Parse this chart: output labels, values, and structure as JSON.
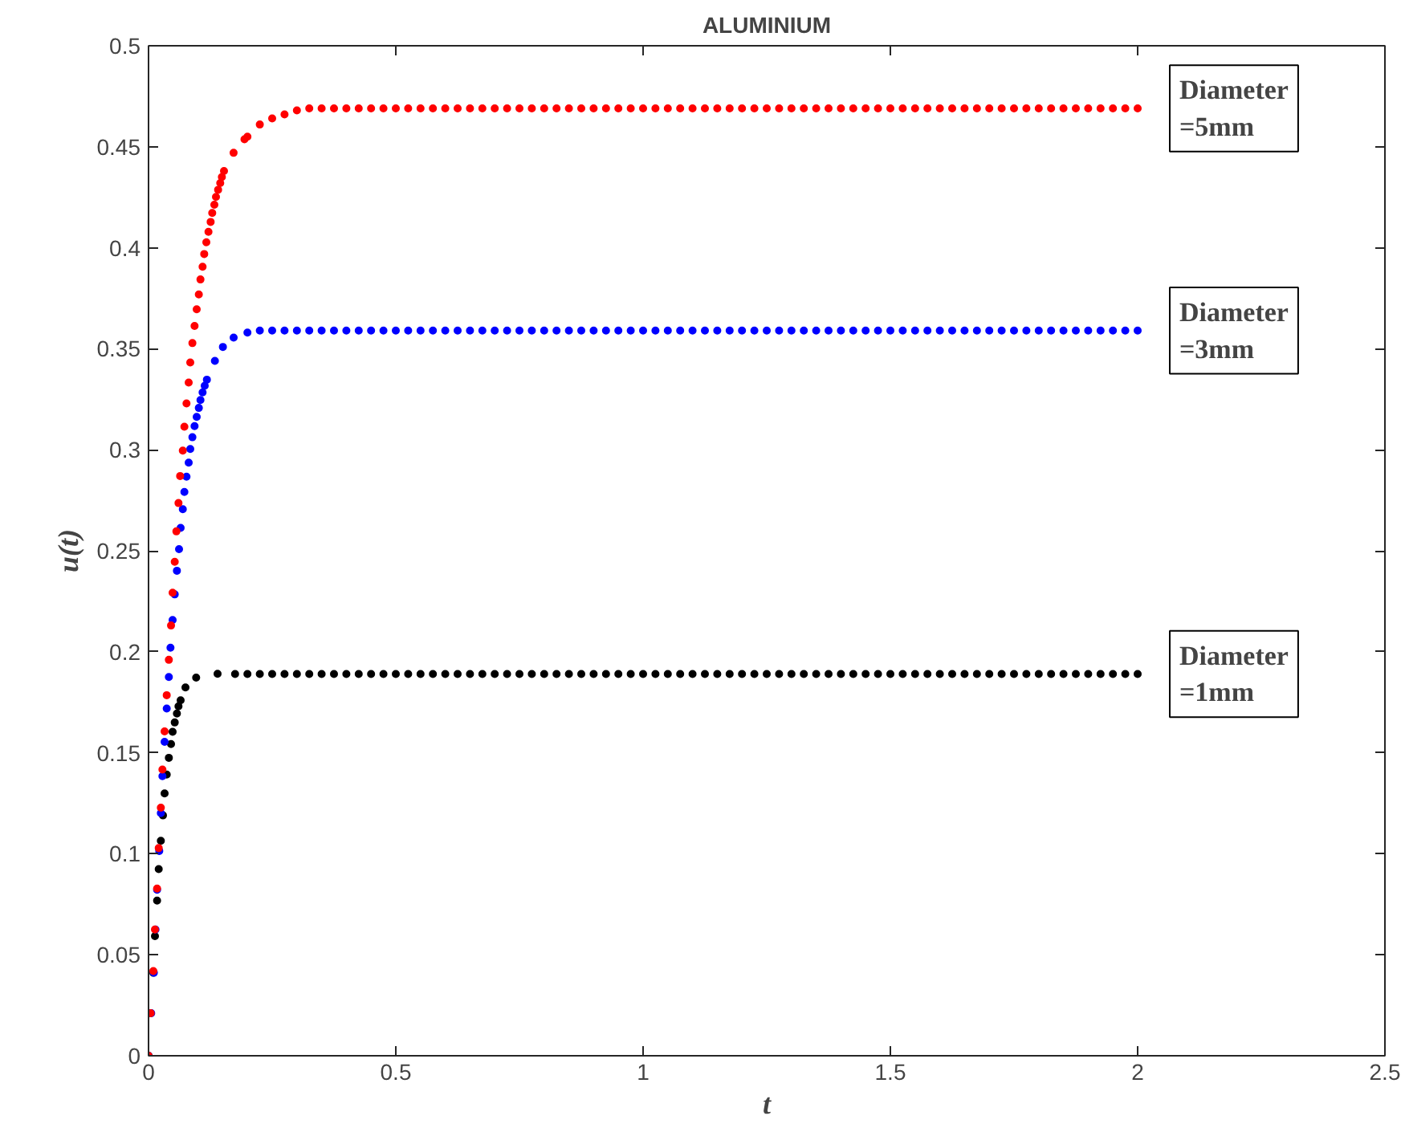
{
  "chart_data": {
    "type": "scatter",
    "title": "ALUMINIUM",
    "xlabel": "t",
    "ylabel": "u(t)",
    "xlim": [
      0,
      2.5
    ],
    "ylim": [
      0,
      0.5
    ],
    "xticks": [
      0,
      0.5,
      1,
      1.5,
      2,
      2.5
    ],
    "yticks": [
      0,
      0.05,
      0.1,
      0.15,
      0.2,
      0.25,
      0.3,
      0.35,
      0.4,
      0.45,
      0.5
    ],
    "grid": false,
    "legend": false,
    "marker": "circle",
    "series": [
      {
        "name": "Diameter\n=5mm",
        "color": "#ff0000",
        "x": [
          0,
          0.0043,
          0.0097,
          0.013,
          0.0173,
          0.0206,
          0.0249,
          0.0281,
          0.0325,
          0.0368,
          0.0411,
          0.0455,
          0.0487,
          0.053,
          0.0563,
          0.0606,
          0.0639,
          0.0693,
          0.0725,
          0.0768,
          0.0812,
          0.0844,
          0.0887,
          0.0931,
          0.0974,
          0.1017,
          0.105,
          0.1093,
          0.1126,
          0.1169,
          0.1212,
          0.1256,
          0.1288,
          0.1331,
          0.1364,
          0.1407,
          0.145,
          0.1483,
          0.1526,
          0.172,
          0.194,
          0.2,
          0.225,
          0.25,
          0.275,
          0.3,
          0.325,
          0.35,
          0.375,
          0.4,
          0.425,
          0.45,
          0.475,
          0.5,
          0.525,
          0.55,
          0.575,
          0.6,
          0.625,
          0.65,
          0.675,
          0.7,
          0.725,
          0.75,
          0.775,
          0.8,
          0.825,
          0.85,
          0.875,
          0.9,
          0.925,
          0.95,
          0.975,
          1,
          1.025,
          1.05,
          1.075,
          1.1,
          1.125,
          1.15,
          1.175,
          1.2,
          1.225,
          1.25,
          1.275,
          1.3,
          1.325,
          1.35,
          1.375,
          1.4,
          1.425,
          1.45,
          1.475,
          1.5,
          1.525,
          1.55,
          1.575,
          1.6,
          1.625,
          1.65,
          1.675,
          1.7,
          1.725,
          1.75,
          1.775,
          1.8,
          1.825,
          1.85,
          1.875,
          1.9,
          1.925,
          1.95,
          1.975,
          2
        ],
        "values": [
          0,
          0.0211,
          0.0419,
          0.0625,
          0.0828,
          0.1028,
          0.1228,
          0.1417,
          0.1606,
          0.1785,
          0.196,
          0.213,
          0.2292,
          0.2445,
          0.2596,
          0.2736,
          0.287,
          0.2996,
          0.3114,
          0.3229,
          0.3333,
          0.3432,
          0.3528,
          0.3613,
          0.3695,
          0.3769,
          0.3843,
          0.3906,
          0.3969,
          0.4027,
          0.4079,
          0.4128,
          0.4172,
          0.4213,
          0.4252,
          0.4287,
          0.432,
          0.435,
          0.438,
          0.447,
          0.4537,
          0.455,
          0.461,
          0.464,
          0.466,
          0.468,
          0.469,
          0.469,
          0.469,
          0.469,
          0.469,
          0.469,
          0.469,
          0.469,
          0.469,
          0.469,
          0.469,
          0.469,
          0.469,
          0.469,
          0.469,
          0.469,
          0.469,
          0.469,
          0.469,
          0.469,
          0.469,
          0.469,
          0.469,
          0.469,
          0.469,
          0.469,
          0.469,
          0.469,
          0.469,
          0.469,
          0.469,
          0.469,
          0.469,
          0.469,
          0.469,
          0.469,
          0.469,
          0.469,
          0.469,
          0.469,
          0.469,
          0.469,
          0.469,
          0.469,
          0.469,
          0.469,
          0.469,
          0.469,
          0.469,
          0.469,
          0.469,
          0.469,
          0.469,
          0.469,
          0.469,
          0.469,
          0.469,
          0.469,
          0.469,
          0.469,
          0.469,
          0.469,
          0.469,
          0.469,
          0.469,
          0.469,
          0.469,
          0.469
        ]
      },
      {
        "name": "Diameter\n=3mm",
        "color": "#0000ff",
        "x": [
          0,
          0.0054,
          0.0108,
          0.0141,
          0.0173,
          0.0217,
          0.0249,
          0.0281,
          0.0325,
          0.0368,
          0.0411,
          0.0444,
          0.0487,
          0.053,
          0.0574,
          0.0617,
          0.0649,
          0.0693,
          0.0725,
          0.0768,
          0.0812,
          0.0844,
          0.0887,
          0.0931,
          0.0974,
          0.1017,
          0.105,
          0.1093,
          0.1136,
          0.118,
          0.1342,
          0.1504,
          0.1721,
          0.2,
          0.225,
          0.25,
          0.275,
          0.3,
          0.325,
          0.35,
          0.375,
          0.4,
          0.425,
          0.45,
          0.475,
          0.5,
          0.525,
          0.55,
          0.575,
          0.6,
          0.625,
          0.65,
          0.675,
          0.7,
          0.725,
          0.75,
          0.775,
          0.8,
          0.825,
          0.85,
          0.875,
          0.9,
          0.925,
          0.95,
          0.975,
          1,
          1.025,
          1.05,
          1.075,
          1.1,
          1.125,
          1.15,
          1.175,
          1.2,
          1.225,
          1.25,
          1.275,
          1.3,
          1.325,
          1.35,
          1.375,
          1.4,
          1.425,
          1.45,
          1.475,
          1.5,
          1.525,
          1.55,
          1.575,
          1.6,
          1.625,
          1.65,
          1.675,
          1.7,
          1.725,
          1.75,
          1.775,
          1.8,
          1.825,
          1.85,
          1.875,
          1.9,
          1.925,
          1.95,
          1.975,
          2
        ],
        "values": [
          0,
          0.0211,
          0.0411,
          0.0625,
          0.0822,
          0.1014,
          0.1201,
          0.1384,
          0.1554,
          0.1719,
          0.1875,
          0.202,
          0.2157,
          0.2284,
          0.2401,
          0.2508,
          0.2613,
          0.2706,
          0.2791,
          0.2867,
          0.2936,
          0.3004,
          0.3062,
          0.3117,
          0.3163,
          0.3207,
          0.3246,
          0.3284,
          0.3317,
          0.3347,
          0.344,
          0.3509,
          0.3555,
          0.358,
          0.359,
          0.359,
          0.359,
          0.359,
          0.359,
          0.359,
          0.359,
          0.359,
          0.359,
          0.359,
          0.359,
          0.359,
          0.359,
          0.359,
          0.359,
          0.359,
          0.359,
          0.359,
          0.359,
          0.359,
          0.359,
          0.359,
          0.359,
          0.359,
          0.359,
          0.359,
          0.359,
          0.359,
          0.359,
          0.359,
          0.359,
          0.359,
          0.359,
          0.359,
          0.359,
          0.359,
          0.359,
          0.359,
          0.359,
          0.359,
          0.359,
          0.359,
          0.359,
          0.359,
          0.359,
          0.359,
          0.359,
          0.359,
          0.359,
          0.359,
          0.359,
          0.359,
          0.359,
          0.359,
          0.359,
          0.359,
          0.359,
          0.359,
          0.359,
          0.359,
          0.359,
          0.359,
          0.359,
          0.359,
          0.359,
          0.359,
          0.359,
          0.359,
          0.359,
          0.359,
          0.359,
          0.359
        ]
      },
      {
        "name": "Diameter\n=1mm",
        "color": "#000000",
        "x": [
          0,
          0.0043,
          0.0097,
          0.013,
          0.0173,
          0.0206,
          0.0249,
          0.0292,
          0.0325,
          0.0368,
          0.0411,
          0.0455,
          0.0487,
          0.053,
          0.0574,
          0.0606,
          0.0649,
          0.0747,
          0.0963,
          0.1396,
          0.175,
          0.2,
          0.225,
          0.25,
          0.275,
          0.3,
          0.325,
          0.35,
          0.375,
          0.4,
          0.425,
          0.45,
          0.475,
          0.5,
          0.525,
          0.55,
          0.575,
          0.6,
          0.625,
          0.65,
          0.675,
          0.7,
          0.725,
          0.75,
          0.775,
          0.8,
          0.825,
          0.85,
          0.875,
          0.9,
          0.925,
          0.95,
          0.975,
          1,
          1.025,
          1.05,
          1.075,
          1.1,
          1.125,
          1.15,
          1.175,
          1.2,
          1.225,
          1.25,
          1.275,
          1.3,
          1.325,
          1.35,
          1.375,
          1.4,
          1.425,
          1.45,
          1.475,
          1.5,
          1.525,
          1.55,
          1.575,
          1.6,
          1.625,
          1.65,
          1.675,
          1.7,
          1.725,
          1.75,
          1.775,
          1.8,
          1.825,
          1.85,
          1.875,
          1.9,
          1.925,
          1.95,
          1.975,
          2
        ],
        "values": [
          0,
          0.0211,
          0.0411,
          0.0592,
          0.0768,
          0.0924,
          0.1064,
          0.119,
          0.1299,
          0.1392,
          0.1475,
          0.1543,
          0.1604,
          0.165,
          0.1694,
          0.173,
          0.176,
          0.1823,
          0.1872,
          0.1891,
          0.189,
          0.189,
          0.189,
          0.189,
          0.189,
          0.189,
          0.189,
          0.189,
          0.189,
          0.189,
          0.189,
          0.189,
          0.189,
          0.189,
          0.189,
          0.189,
          0.189,
          0.189,
          0.189,
          0.189,
          0.189,
          0.189,
          0.189,
          0.189,
          0.189,
          0.189,
          0.189,
          0.189,
          0.189,
          0.189,
          0.189,
          0.189,
          0.189,
          0.189,
          0.189,
          0.189,
          0.189,
          0.189,
          0.189,
          0.189,
          0.189,
          0.189,
          0.189,
          0.189,
          0.189,
          0.189,
          0.189,
          0.189,
          0.189,
          0.189,
          0.189,
          0.189,
          0.189,
          0.189,
          0.189,
          0.189,
          0.189,
          0.189,
          0.189,
          0.189,
          0.189,
          0.189,
          0.189,
          0.189,
          0.189,
          0.189,
          0.189,
          0.189,
          0.189,
          0.189,
          0.189,
          0.189,
          0.189,
          0.189
        ]
      }
    ]
  }
}
